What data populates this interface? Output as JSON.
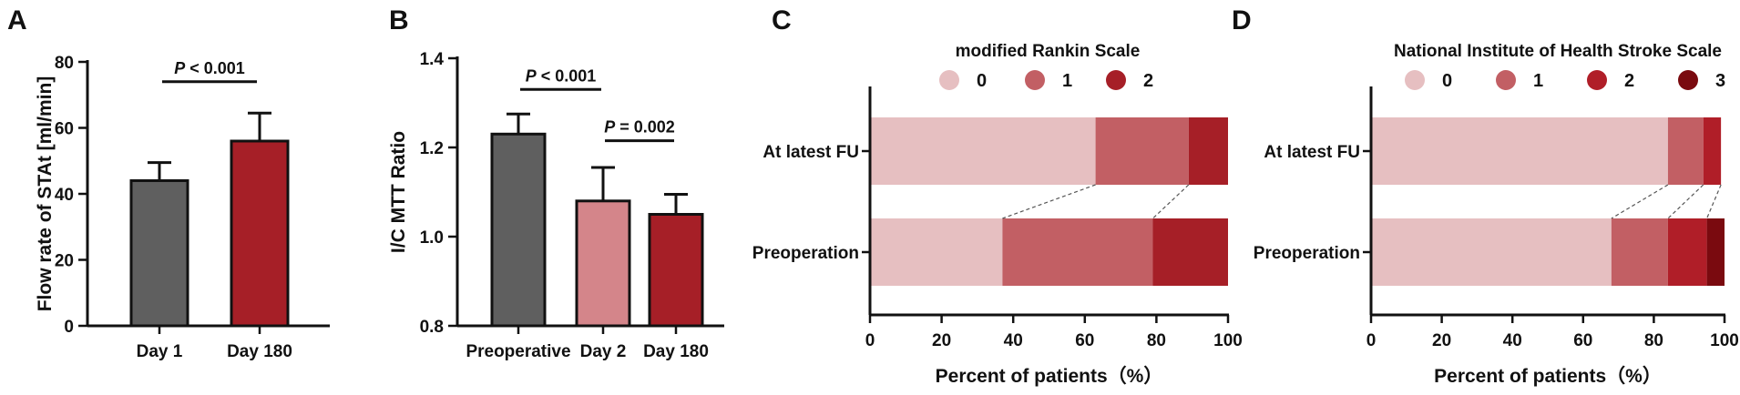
{
  "figure": {
    "panel_letters": [
      "A",
      "B",
      "C",
      "D"
    ]
  },
  "chart_data": [
    {
      "id": "A",
      "type": "bar",
      "title": "",
      "xlabel": "",
      "ylabel": "Flow rate of STAt [ml/min]",
      "ylim": [
        0,
        80
      ],
      "yticks": [
        0,
        20,
        40,
        60,
        80
      ],
      "categories": [
        "Day 1",
        "Day 180"
      ],
      "values": [
        44,
        56
      ],
      "errors": [
        5.5,
        8.5
      ],
      "colors": [
        "#5f5f5f",
        "#a61f27"
      ],
      "annotations": [
        {
          "p_label": "P",
          "text": " < 0.001",
          "from": 0,
          "to": 1,
          "y": 74
        }
      ]
    },
    {
      "id": "B",
      "type": "bar",
      "title": "",
      "xlabel": "",
      "ylabel": "I/C MTT Ratio",
      "ylim": [
        0.8,
        1.4
      ],
      "yticks": [
        0.8,
        1.0,
        1.2,
        1.4
      ],
      "ytick_labels": [
        "0.8",
        "1.0",
        "1.2",
        "1.4"
      ],
      "categories": [
        "Preoperative",
        "Day 2",
        "Day 180"
      ],
      "values": [
        1.23,
        1.08,
        1.05
      ],
      "errors": [
        0.045,
        0.075,
        0.045
      ],
      "colors": [
        "#5f5f5f",
        "#d4858a",
        "#a61f27"
      ],
      "annotations": [
        {
          "p_label": "P",
          "text": " < 0.001",
          "from": 0,
          "to": 1,
          "y": 1.33
        },
        {
          "p_label": "P",
          "text": " = 0.002",
          "from": 1,
          "to": 2,
          "y": 1.215
        }
      ]
    },
    {
      "id": "C",
      "type": "bar",
      "orientation": "horizontal-stacked",
      "title": "modified Rankin Scale",
      "xlabel": "Percent of patients（%）",
      "ylabel": "",
      "xlim": [
        0,
        100
      ],
      "xticks": [
        0,
        20,
        40,
        60,
        80,
        100
      ],
      "categories": [
        "At latest FU",
        "Preoperation"
      ],
      "legend": [
        "0",
        "1",
        "2"
      ],
      "colors": [
        "#e6bfc1",
        "#c25f64",
        "#a61f27"
      ],
      "series": [
        {
          "name": "0",
          "values": [
            63,
            37
          ]
        },
        {
          "name": "1",
          "values": [
            26,
            42
          ]
        },
        {
          "name": "2",
          "values": [
            11,
            21
          ]
        }
      ]
    },
    {
      "id": "D",
      "type": "bar",
      "orientation": "horizontal-stacked",
      "title": "National Institute of Health Stroke Scale",
      "xlabel": "Percent of patients（%）",
      "ylabel": "",
      "xlim": [
        0,
        100
      ],
      "xticks": [
        0,
        20,
        40,
        60,
        80,
        100
      ],
      "categories": [
        "At latest FU",
        "Preoperation"
      ],
      "legend": [
        "0",
        "1",
        "2",
        "3"
      ],
      "colors": [
        "#e6bfc1",
        "#c25f64",
        "#b01e28",
        "#7a0a0f"
      ],
      "series": [
        {
          "name": "0",
          "values": [
            84,
            68
          ]
        },
        {
          "name": "1",
          "values": [
            10,
            16
          ]
        },
        {
          "name": "2",
          "values": [
            5,
            11
          ]
        },
        {
          "name": "3",
          "values": [
            0,
            5
          ]
        }
      ]
    }
  ]
}
